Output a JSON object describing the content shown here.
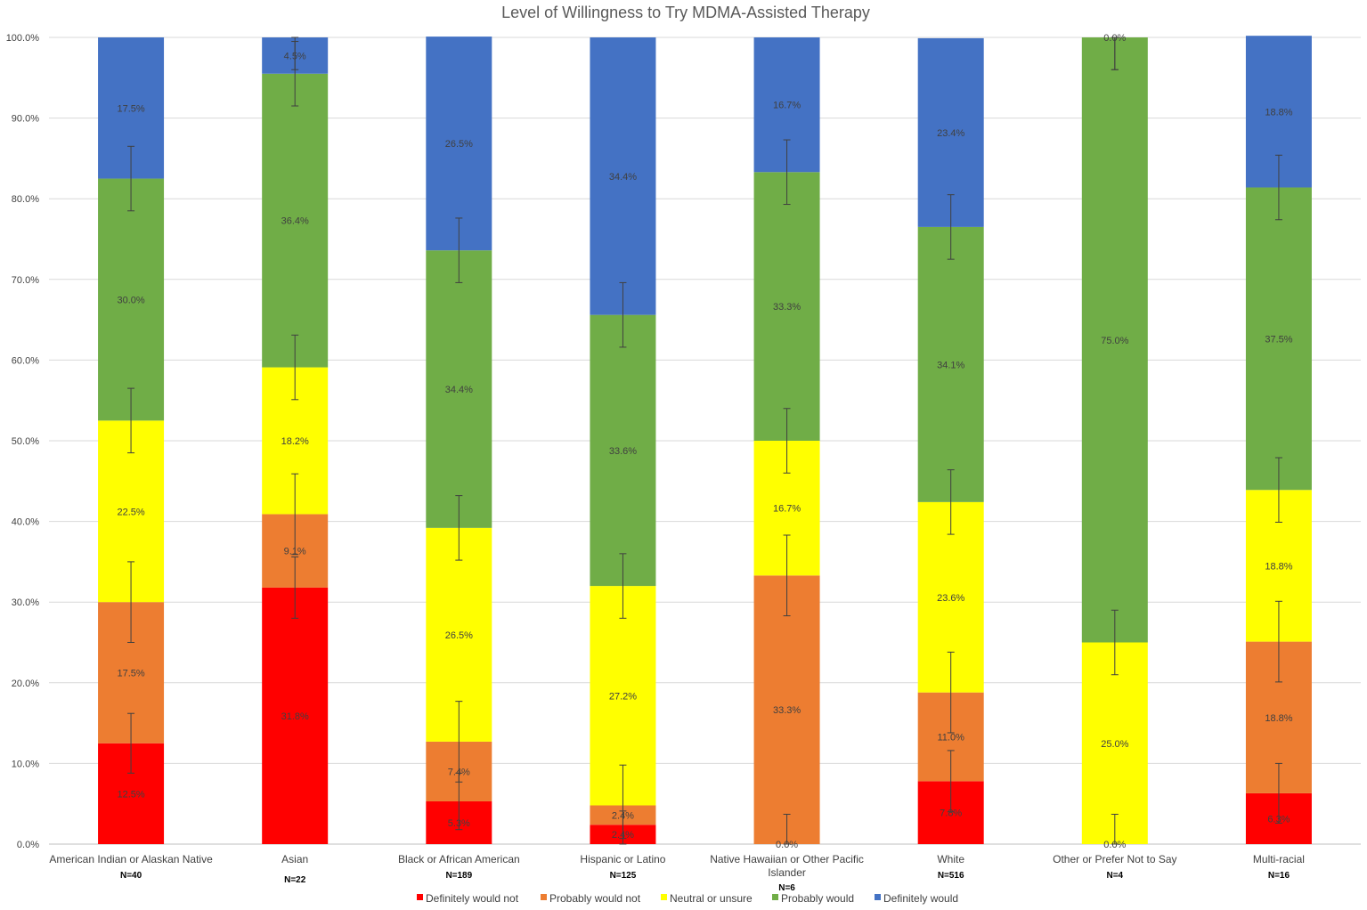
{
  "chart_data": {
    "type": "bar",
    "stacked": true,
    "title": "Level of Willingness to Try MDMA-Assisted Therapy",
    "xlabel": "",
    "ylabel": "",
    "ylim": [
      0,
      100
    ],
    "yticks": [
      "0.0%",
      "10.0%",
      "20.0%",
      "30.0%",
      "40.0%",
      "50.0%",
      "60.0%",
      "70.0%",
      "80.0%",
      "90.0%",
      "100.0%"
    ],
    "categories": [
      {
        "label": [
          "American Indian or Alaskan Native"
        ],
        "n": "N=40"
      },
      {
        "label": [
          "Asian"
        ],
        "n": "N=22"
      },
      {
        "label": [
          "Black or African American"
        ],
        "n": "N=189"
      },
      {
        "label": [
          "Hispanic or Latino"
        ],
        "n": "N=125"
      },
      {
        "label": [
          "Native Hawaiian or Other Pacific",
          "Islander"
        ],
        "n": "N=6"
      },
      {
        "label": [
          "White"
        ],
        "n": "N=516"
      },
      {
        "label": [
          "Other or Prefer Not to Say"
        ],
        "n": "N=4"
      },
      {
        "label": [
          "Multi-racial"
        ],
        "n": "N=16"
      }
    ],
    "series": [
      {
        "name": "Definitely would not",
        "color": "#ff0000",
        "values": [
          12.5,
          31.8,
          5.3,
          2.4,
          0.0,
          7.8,
          0.0,
          6.3
        ],
        "labels": [
          "12.5%",
          "31.8%",
          "5.3%",
          "2.4%",
          "0.0%",
          "7.8%",
          "0.0%",
          "6.3%"
        ],
        "errors": [
          3.7,
          3.8,
          3.5,
          1.7,
          3.7,
          3.8,
          3.7,
          3.7
        ]
      },
      {
        "name": "Probably would not",
        "color": "#ed7d31",
        "values": [
          17.5,
          9.1,
          7.4,
          2.4,
          33.3,
          11.0,
          0.0,
          18.8
        ],
        "labels": [
          "17.5%",
          "9.1%",
          "7.4%",
          "2.4%",
          "33.3%",
          "11.0%",
          "",
          "18.8%"
        ],
        "errors": [
          5.0,
          5.0,
          5.0,
          5.0,
          5.0,
          5.0,
          0,
          5.0
        ]
      },
      {
        "name": "Neutral or unsure",
        "color": "#ffff00",
        "values": [
          22.5,
          18.2,
          26.5,
          27.2,
          16.7,
          23.6,
          25.0,
          18.8
        ],
        "labels": [
          "22.5%",
          "18.2%",
          "26.5%",
          "27.2%",
          "16.7%",
          "23.6%",
          "25.0%",
          "18.8%"
        ],
        "errors": [
          4.0,
          4.0,
          4.0,
          4.0,
          4.0,
          4.0,
          4.0,
          4.0
        ]
      },
      {
        "name": "Probably would",
        "color": "#70ad47",
        "values": [
          30.0,
          36.4,
          34.4,
          33.6,
          33.3,
          34.1,
          75.0,
          37.5
        ],
        "labels": [
          "30.0%",
          "36.4%",
          "34.4%",
          "33.6%",
          "33.3%",
          "34.1%",
          "75.0%",
          "37.5%"
        ],
        "errors": [
          4.0,
          4.0,
          4.0,
          4.0,
          4.0,
          4.0,
          4.0,
          4.0
        ]
      },
      {
        "name": "Definitely would",
        "color": "#4472c4",
        "values": [
          17.5,
          4.5,
          26.5,
          34.4,
          16.7,
          23.4,
          0.0,
          18.8
        ],
        "labels": [
          "17.5%",
          "4.5%",
          "26.5%",
          "34.4%",
          "16.7%",
          "23.4%",
          "0.0%",
          "18.8%"
        ],
        "errors": [
          0,
          4.0,
          0,
          0,
          0,
          0,
          4.0,
          0
        ]
      }
    ],
    "legend_position": "bottom",
    "grid": true
  }
}
